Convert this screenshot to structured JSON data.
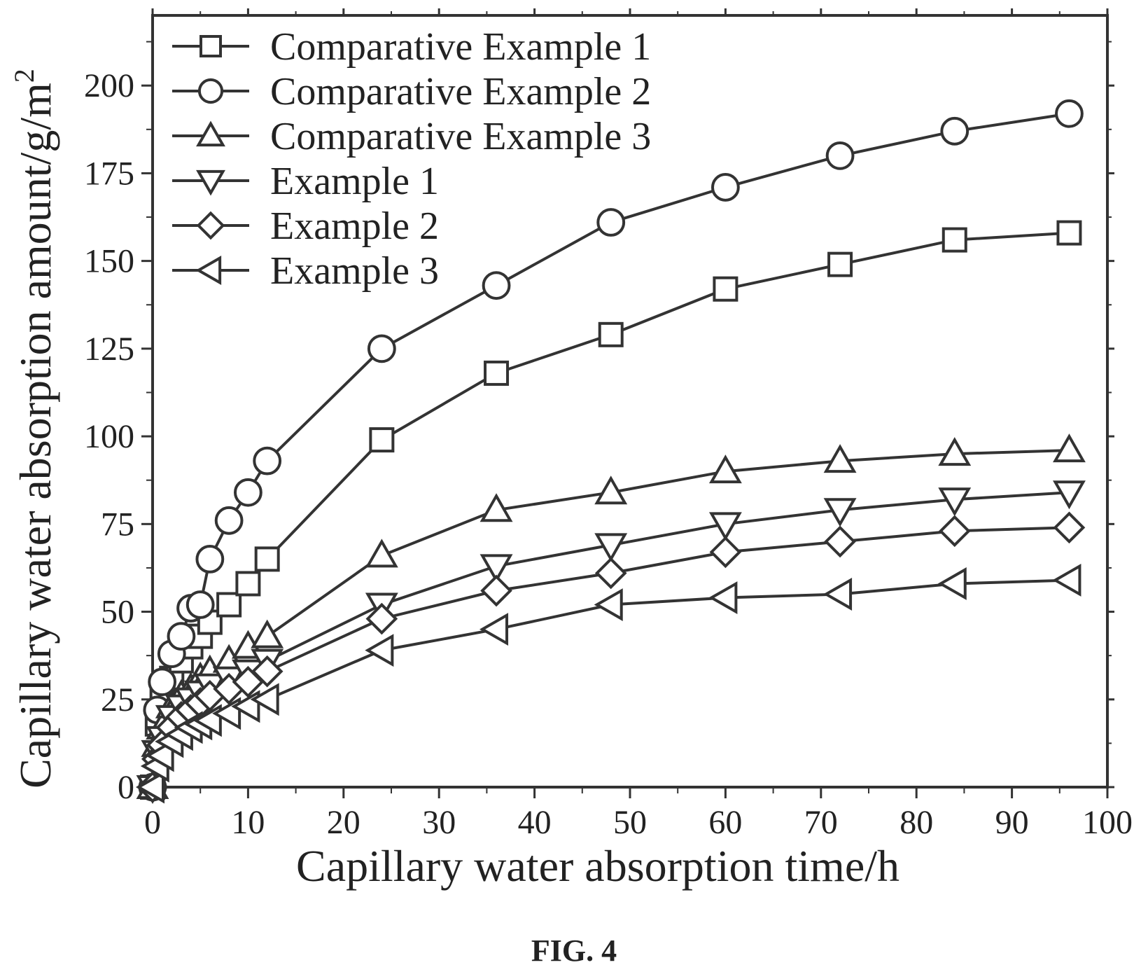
{
  "figure": {
    "caption": "FIG. 4"
  },
  "chart_data": {
    "type": "line",
    "xlabel": "Capillary water absorption time/h",
    "ylabel": "Capillary water absorption amount/g/m",
    "ylabel_superscript": "2",
    "xlim": [
      0,
      100
    ],
    "ylim": [
      0,
      220
    ],
    "xticks": [
      0,
      10,
      20,
      30,
      40,
      50,
      60,
      70,
      80,
      90,
      100
    ],
    "yticks": [
      0,
      25,
      50,
      75,
      100,
      125,
      150,
      175,
      200
    ],
    "grid": false,
    "legend_position": "top-left",
    "line_color": "#333333",
    "x": [
      0,
      0.5,
      1,
      2,
      3,
      4,
      5,
      6,
      8,
      10,
      12,
      24,
      36,
      48,
      60,
      72,
      84,
      96
    ],
    "series": [
      {
        "name": "Comparative Example 1",
        "marker": "square",
        "values": [
          0,
          18,
          26,
          31,
          36,
          40,
          43,
          47,
          52,
          58,
          65,
          99,
          118,
          129,
          142,
          149,
          156,
          158
        ]
      },
      {
        "name": "Comparative Example 2",
        "marker": "circle",
        "values": [
          0,
          22,
          30,
          38,
          43,
          51,
          52,
          65,
          76,
          84,
          93,
          125,
          143,
          161,
          171,
          180,
          187,
          192
        ]
      },
      {
        "name": "Comparative Example 3",
        "marker": "triangle-up",
        "values": [
          0,
          12,
          17,
          23,
          26,
          28,
          31,
          33,
          36,
          40,
          43,
          66,
          79,
          84,
          90,
          93,
          95,
          96
        ]
      },
      {
        "name": "Example 1",
        "marker": "triangle-down",
        "values": [
          0,
          10,
          14,
          20,
          23,
          25,
          27,
          29,
          31,
          33,
          36,
          52,
          63,
          69,
          75,
          79,
          82,
          84
        ]
      },
      {
        "name": "Example 2",
        "marker": "diamond",
        "values": [
          0,
          8,
          12,
          17,
          20,
          22,
          24,
          26,
          28,
          30,
          33,
          48,
          56,
          61,
          67,
          70,
          73,
          74
        ]
      },
      {
        "name": "Example 3",
        "marker": "triangle-left",
        "values": [
          0,
          6,
          9,
          13,
          15,
          17,
          18,
          19,
          21,
          23,
          25,
          39,
          45,
          52,
          54,
          55,
          58,
          59
        ]
      }
    ]
  }
}
